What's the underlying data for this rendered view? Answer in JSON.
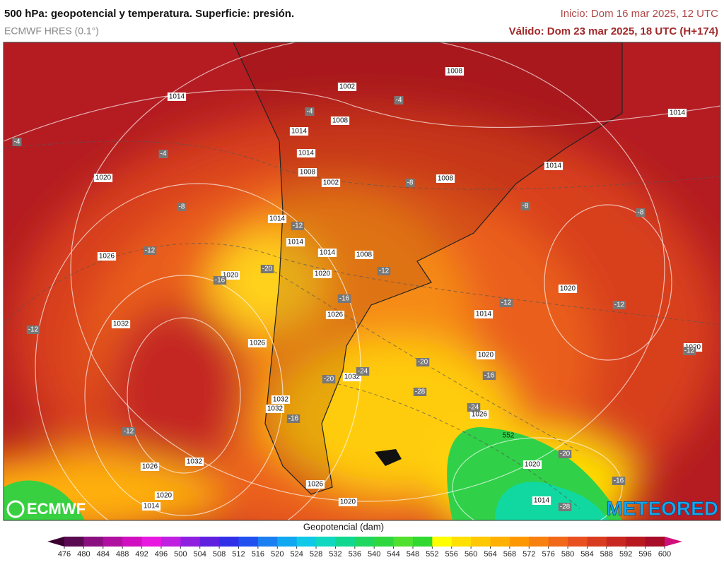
{
  "header": {
    "title": "500 hPa: geopotencial y temperatura. Superficie: presión.",
    "model": "ECMWF HRES (0.1°)",
    "init": "Inicio: Dom 16 mar 2025, 12 UTC",
    "valid": "Válido: Dom 23 mar 2025, 18 UTC (H+174)"
  },
  "map_labels": {
    "pressure": [
      1014,
      1008,
      1002,
      1008,
      1014,
      1014,
      1008,
      1002,
      1008,
      1014,
      1014,
      1020,
      1014,
      1014,
      1014,
      1008,
      1020,
      1020,
      1026,
      1026,
      1032,
      1026,
      1032,
      1020,
      1014,
      1020,
      1020,
      1032,
      1032,
      1026,
      1020,
      1032,
      1026,
      1020,
      1014,
      1026,
      1020,
      1014
    ],
    "temperature": [
      -4,
      -4,
      -4,
      -4,
      -8,
      -8,
      -8,
      -8,
      -12,
      -12,
      -12,
      -12,
      -12,
      -12,
      -12,
      -12,
      -16,
      -16,
      -16,
      -16,
      -16,
      -20,
      -20,
      -20,
      -20,
      -24,
      -24,
      -28,
      -28
    ],
    "geopotential": [
      552
    ]
  },
  "colorbar": {
    "label": "Geopotencial (dam)",
    "ticks": [
      476,
      480,
      484,
      488,
      492,
      496,
      500,
      504,
      508,
      512,
      516,
      520,
      524,
      528,
      532,
      536,
      540,
      544,
      548,
      552,
      556,
      560,
      564,
      568,
      572,
      576,
      580,
      584,
      588,
      592,
      596,
      600
    ],
    "colors": [
      "#5a0a50",
      "#8a1080",
      "#b010a0",
      "#d010c0",
      "#e818e0",
      "#c020e0",
      "#9020e0",
      "#6020e0",
      "#3030e8",
      "#2050f0",
      "#1a7ff0",
      "#10a8f0",
      "#10c8e8",
      "#10d8c0",
      "#10d890",
      "#20d860",
      "#30d840",
      "#50e030",
      "#30d830",
      "#ffff00",
      "#ffe000",
      "#ffc800",
      "#ffb000",
      "#ff9800",
      "#f88010",
      "#f06818",
      "#e85020",
      "#d83c20",
      "#c82820",
      "#b81820",
      "#a80c28"
    ],
    "under_color": "#3a0030",
    "over_color": "#d0107a"
  },
  "logos": {
    "left": "ECMWF",
    "right": "METEORED"
  }
}
